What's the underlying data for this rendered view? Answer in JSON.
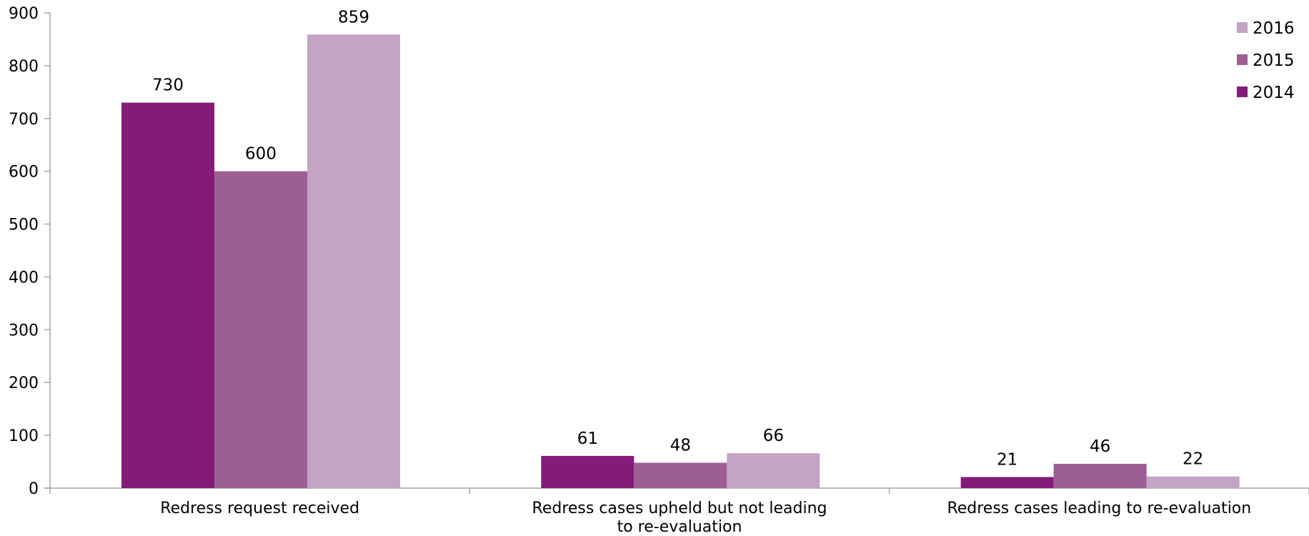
{
  "chart_data": {
    "type": "bar",
    "categories": [
      [
        "Redress request received"
      ],
      [
        "Redress cases upheld but not leading",
        "to re-evaluation"
      ],
      [
        "Redress cases leading to re-evaluation"
      ]
    ],
    "series": [
      {
        "name": "2014",
        "color": "#841b7a",
        "values": [
          730,
          61,
          21
        ]
      },
      {
        "name": "2015",
        "color": "#9d5e94",
        "values": [
          600,
          48,
          46
        ]
      },
      {
        "name": "2016",
        "color": "#c4a3c3",
        "values": [
          859,
          66,
          22
        ]
      }
    ],
    "ylim": [
      0,
      900
    ],
    "yticks": [
      0,
      100,
      200,
      300,
      400,
      500,
      600,
      700,
      800,
      900
    ],
    "grid": false,
    "legend_position": "top-right",
    "legend_order": [
      "2016",
      "2015",
      "2014"
    ],
    "axis_color": "#a6a6a6"
  }
}
